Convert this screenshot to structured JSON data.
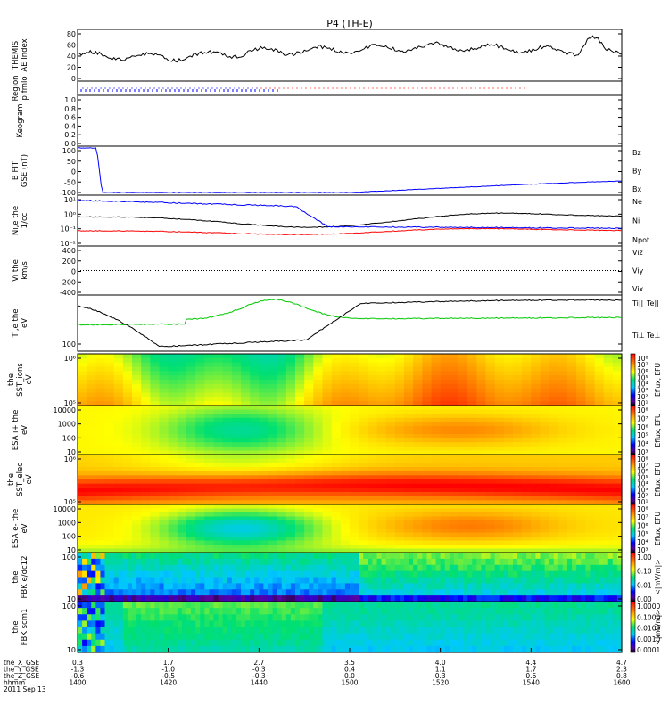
{
  "title": "P4 (TH-E)",
  "date_label": "2011 Sep 13",
  "xaxis": {
    "row_labels": [
      "the_X_GSE",
      "the_Y_GSE",
      "the_Z_GSE",
      "hhmm"
    ],
    "ticks": [
      {
        "x": 1400,
        "vals": [
          "0.3",
          "-1.3",
          "-0.6",
          "1400"
        ]
      },
      {
        "x": 1420,
        "vals": [
          "1.7",
          "-1.0",
          "-0.5",
          "1420"
        ]
      },
      {
        "x": 1440,
        "vals": [
          "2.7",
          "-0.3",
          "-0.3",
          "1440"
        ]
      },
      {
        "x": 1500,
        "vals": [
          "3.5",
          "0.4",
          "0.0",
          "1500"
        ]
      },
      {
        "x": 1520,
        "vals": [
          "4.0",
          "1.1",
          "0.3",
          "1520"
        ]
      },
      {
        "x": 1540,
        "vals": [
          "4.4",
          "1.7",
          "0.6",
          "1540"
        ]
      },
      {
        "x": 1600,
        "vals": [
          "4.7",
          "2.3",
          "0.8",
          "1600"
        ]
      }
    ]
  },
  "panels": {
    "ae": {
      "label": [
        "THEMIS",
        "AE Index"
      ],
      "ticks": [
        "0",
        "20",
        "40",
        "60",
        "80"
      ]
    },
    "region": {
      "label": [
        "Region",
        "p|fmlo"
      ]
    },
    "keogram": {
      "label": [
        "Keogram"
      ],
      "ticks": [
        "0.0",
        "0.2",
        "0.4",
        "0.6",
        "0.8",
        "1.0"
      ]
    },
    "bfield": {
      "label": [
        "B FIT",
        "GSE (nT)"
      ],
      "ticks": [
        "-100",
        "-50",
        "0",
        "50",
        "100"
      ],
      "legend": [
        "Bz",
        "By",
        "Bx"
      ]
    },
    "density": {
      "label": [
        "Ni,e the",
        "1/cc"
      ],
      "ticks": [
        "10⁻²",
        "10⁻¹",
        "10⁰",
        "10¹"
      ],
      "legend": [
        "Ne",
        "Ni",
        "Npot"
      ]
    },
    "velocity": {
      "label": [
        "Vi the",
        "km/s"
      ],
      "ticks": [
        "-400",
        "-200",
        "0",
        "200",
        "400"
      ],
      "legend": [
        "Viz",
        "Viy",
        "Vix"
      ]
    },
    "temp": {
      "label": [
        "Ti,e the",
        "eV"
      ],
      "ticks": [
        "100"
      ],
      "legend": [
        "Ti||",
        "Te||",
        "Ti⊥",
        "Te⊥"
      ]
    },
    "sst_ions": {
      "label": [
        "the",
        "SST_ions",
        "eV"
      ],
      "ticks": [
        "10⁵",
        "10⁶"
      ]
    },
    "esa_ions": {
      "label": [
        "ESA i+ the",
        "eV"
      ],
      "ticks": [
        "10",
        "100",
        "1000",
        "10000"
      ]
    },
    "sst_elec": {
      "label": [
        "the",
        "SST_elec",
        "eV"
      ],
      "ticks": [
        "10⁵",
        "10⁶"
      ]
    },
    "esa_elec": {
      "label": [
        "ESA e- the",
        "eV"
      ],
      "ticks": [
        "10",
        "100",
        "1000",
        "10000"
      ]
    },
    "fbk_e": {
      "label": [
        "the",
        "FBK e/dc12"
      ],
      "ticks": [
        "10",
        "100"
      ]
    },
    "fbk_b": {
      "label": [
        "the",
        "FBK scm1"
      ],
      "ticks": [
        "10",
        "100"
      ]
    }
  },
  "colorbars": [
    {
      "ticks": [
        "10⁸",
        "10⁷",
        "10⁶",
        "10⁵",
        "10⁴",
        "10³",
        "10²",
        "10¹"
      ],
      "unit": "Eflux, EFU"
    },
    {
      "ticks": [
        "10⁸",
        "10⁷",
        "10⁶",
        "10⁵",
        "10⁴",
        "10³"
      ],
      "unit": "Eflux, EFU"
    },
    {
      "ticks": [
        "10⁸",
        "10⁷",
        "10⁶",
        "10⁵",
        "10⁴",
        "10³",
        "10²",
        "10¹"
      ],
      "unit": "Eflux, EFU"
    },
    {
      "ticks": [
        "10⁸",
        "10⁷",
        "10⁶",
        "10⁵",
        "10⁴",
        "10³"
      ],
      "unit": "Eflux, EFU"
    },
    {
      "ticks": [
        "1.00",
        "0.10",
        "0.01",
        "0.00"
      ],
      "unit": "<|mV/m|>"
    },
    {
      "ticks": [
        "1.0000",
        "0.1000",
        "0.0100",
        "0.0010",
        "0.0001"
      ],
      "unit": "<|mV/m|>"
    }
  ],
  "colors": {
    "red": "#ff0000",
    "green": "#00c800",
    "blue": "#0000ff",
    "black": "#000000"
  },
  "chart_data": {
    "type": "line",
    "title": "P4 (TH-E)",
    "x_unit": "hhmm",
    "x": [
      1400,
      1420,
      1440,
      1500,
      1520,
      1540,
      1600
    ],
    "series": [
      {
        "name": "AE Index",
        "values": [
          42,
          37,
          48,
          52,
          57,
          52,
          45
        ]
      },
      {
        "name": "Bx",
        "values": [
          -100,
          -100,
          -100,
          -100,
          -80,
          -60,
          -45
        ]
      },
      {
        "name": "Ni",
        "values": [
          1.2,
          0.7,
          0.3,
          0.9,
          1.4,
          1.0,
          0.8
        ]
      },
      {
        "name": "Ti||",
        "values": [
          230,
          250,
          400,
          240,
          230,
          235,
          225
        ]
      },
      {
        "name": "Te||",
        "values": [
          350,
          100,
          110,
          200,
          310,
          330,
          310
        ]
      }
    ],
    "ylim_ae": [
      0,
      80
    ]
  }
}
